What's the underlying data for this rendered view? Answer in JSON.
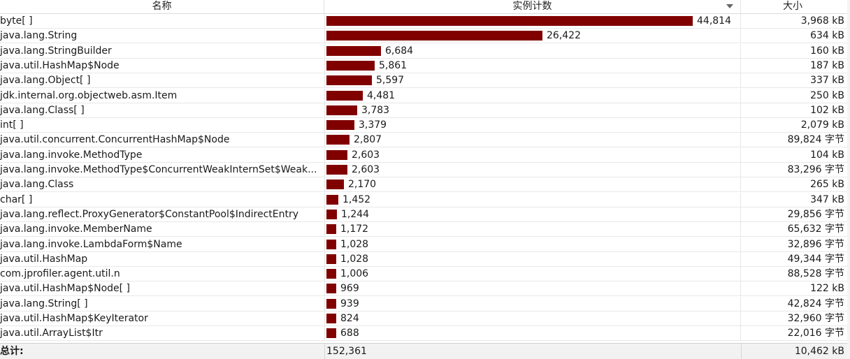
{
  "header": {
    "name_label": "名称",
    "count_label": "实例计数",
    "size_label": "大小"
  },
  "max_count": 44814,
  "rows": [
    {
      "name": "byte[ ]",
      "count": 44814,
      "count_label": "44,814",
      "size": "3,968 kB"
    },
    {
      "name": "java.lang.String",
      "count": 26422,
      "count_label": "26,422",
      "size": "634 kB"
    },
    {
      "name": "java.lang.StringBuilder",
      "count": 6684,
      "count_label": "6,684",
      "size": "160 kB"
    },
    {
      "name": "java.util.HashMap$Node",
      "count": 5861,
      "count_label": "5,861",
      "size": "187 kB"
    },
    {
      "name": "java.lang.Object[ ]",
      "count": 5597,
      "count_label": "5,597",
      "size": "337 kB"
    },
    {
      "name": "jdk.internal.org.objectweb.asm.Item",
      "count": 4481,
      "count_label": "4,481",
      "size": "250 kB"
    },
    {
      "name": "java.lang.Class[ ]",
      "count": 3783,
      "count_label": "3,783",
      "size": "102 kB"
    },
    {
      "name": "int[ ]",
      "count": 3379,
      "count_label": "3,379",
      "size": "2,079 kB"
    },
    {
      "name": "java.util.concurrent.ConcurrentHashMap$Node",
      "count": 2807,
      "count_label": "2,807",
      "size": "89,824 字节"
    },
    {
      "name": "java.lang.invoke.MethodType",
      "count": 2603,
      "count_label": "2,603",
      "size": "104 kB"
    },
    {
      "name": "java.lang.invoke.MethodType$ConcurrentWeakInternSet$Weak...",
      "count": 2603,
      "count_label": "2,603",
      "size": "83,296 字节"
    },
    {
      "name": "java.lang.Class",
      "count": 2170,
      "count_label": "2,170",
      "size": "265 kB"
    },
    {
      "name": "char[ ]",
      "count": 1452,
      "count_label": "1,452",
      "size": "347 kB"
    },
    {
      "name": "java.lang.reflect.ProxyGenerator$ConstantPool$IndirectEntry",
      "count": 1244,
      "count_label": "1,244",
      "size": "29,856 字节"
    },
    {
      "name": "java.lang.invoke.MemberName",
      "count": 1172,
      "count_label": "1,172",
      "size": "65,632 字节"
    },
    {
      "name": "java.lang.invoke.LambdaForm$Name",
      "count": 1028,
      "count_label": "1,028",
      "size": "32,896 字节"
    },
    {
      "name": "java.util.HashMap",
      "count": 1028,
      "count_label": "1,028",
      "size": "49,344 字节"
    },
    {
      "name": "com.jprofiler.agent.util.n",
      "count": 1006,
      "count_label": "1,006",
      "size": "88,528 字节"
    },
    {
      "name": "java.util.HashMap$Node[ ]",
      "count": 969,
      "count_label": "969",
      "size": "122 kB"
    },
    {
      "name": "java.lang.String[ ]",
      "count": 939,
      "count_label": "939",
      "size": "42,824 字节"
    },
    {
      "name": "java.util.HashMap$KeyIterator",
      "count": 824,
      "count_label": "824",
      "size": "32,960 字节"
    },
    {
      "name": "java.util.ArrayList$Itr",
      "count": 688,
      "count_label": "688",
      "size": "22,016 字节"
    }
  ],
  "footer": {
    "total_label": "总计:",
    "total_count": "152,361",
    "total_size": "10,462 kB"
  },
  "colors": {
    "bar": "#800000",
    "footer_bg": "#f2f2f2"
  },
  "icons": {
    "sort": "sort-descending-icon"
  }
}
